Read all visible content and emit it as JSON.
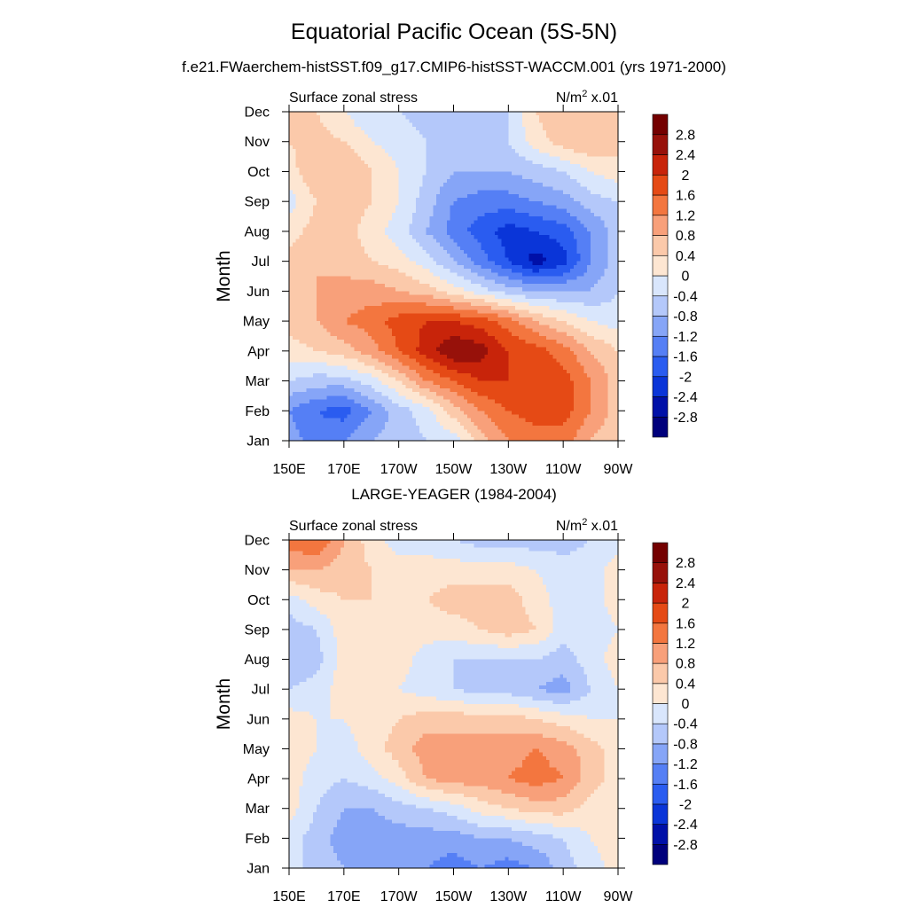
{
  "page": {
    "title": "Equatorial Pacific Ocean (5S-5N)",
    "subtitle": "f.e21.FWaerchem-histSST.f09_g17.CMIP6-histSST-WACCM.001 (yrs 1971-2000)"
  },
  "chart_data": [
    {
      "type": "heatmap",
      "title": "",
      "left_label": "Surface zonal stress",
      "units_label": "N/m",
      "units_exp": "2",
      "units_suffix": " x.01",
      "ylabel": "Month",
      "xlabel": "",
      "x_ticks": [
        "150E",
        "170E",
        "170W",
        "150W",
        "130W",
        "110W",
        "90W"
      ],
      "x_lon": [
        150,
        170,
        190,
        210,
        230,
        250,
        270
      ],
      "y_ticks": [
        "Jan",
        "Feb",
        "Mar",
        "Apr",
        "May",
        "Jun",
        "Jul",
        "Aug",
        "Sep",
        "Oct",
        "Nov",
        "Dec"
      ],
      "xlim": [
        150,
        270
      ],
      "ylim": [
        1,
        12
      ],
      "x_unit": "degrees_east",
      "x": [
        150,
        160,
        170,
        180,
        190,
        200,
        210,
        220,
        230,
        240,
        250,
        260,
        270
      ],
      "y": [
        1,
        2,
        3,
        4,
        5,
        6,
        7,
        8,
        9,
        10,
        11,
        12
      ],
      "values": [
        [
          -1.0,
          -1.4,
          -1.2,
          -0.8,
          -0.6,
          -0.4,
          -0.2,
          0.6,
          1.2,
          1.4,
          1.4,
          0.8,
          0.4
        ],
        [
          -1.2,
          -1.6,
          -1.8,
          -1.2,
          -0.6,
          -0.2,
          0.6,
          1.2,
          1.6,
          1.8,
          1.8,
          1.2,
          0.6
        ],
        [
          -0.4,
          -0.6,
          -0.6,
          -0.2,
          0.4,
          1.2,
          1.6,
          2.0,
          2.0,
          2.0,
          1.8,
          1.2,
          0.6
        ],
        [
          0.2,
          0.4,
          0.6,
          1.0,
          1.6,
          2.2,
          2.8,
          2.6,
          2.0,
          1.8,
          1.4,
          0.8,
          0.4
        ],
        [
          0.6,
          0.8,
          1.2,
          1.4,
          1.8,
          2.0,
          2.0,
          1.8,
          1.4,
          0.8,
          0.4,
          0.0,
          -0.2
        ],
        [
          0.6,
          0.8,
          1.0,
          1.0,
          0.8,
          0.6,
          0.2,
          -0.2,
          -0.6,
          -0.8,
          -0.8,
          -0.8,
          -0.4
        ],
        [
          0.6,
          0.8,
          0.6,
          0.4,
          0.2,
          -0.2,
          -0.8,
          -1.4,
          -2.0,
          -2.6,
          -2.2,
          -1.2,
          -0.6
        ],
        [
          0.2,
          0.6,
          0.6,
          0.2,
          -0.2,
          -0.8,
          -1.4,
          -1.8,
          -2.2,
          -2.0,
          -1.8,
          -1.2,
          -0.6
        ],
        [
          -0.2,
          0.4,
          0.6,
          0.4,
          0.0,
          -0.6,
          -1.2,
          -1.4,
          -1.4,
          -1.2,
          -1.0,
          -0.6,
          -0.4
        ],
        [
          0.2,
          0.8,
          0.8,
          0.4,
          0.0,
          -0.4,
          -0.8,
          -0.8,
          -0.8,
          -0.6,
          -0.4,
          0.0,
          0.2
        ],
        [
          0.4,
          0.6,
          0.4,
          0.0,
          -0.2,
          -0.4,
          -0.4,
          -0.6,
          -0.4,
          0.2,
          0.6,
          0.8,
          0.6
        ],
        [
          0.4,
          0.4,
          0.0,
          -0.4,
          -0.4,
          -0.6,
          -0.6,
          -0.4,
          -0.4,
          0.4,
          0.8,
          0.8,
          0.6
        ]
      ],
      "levels": [
        -2.8,
        -2.4,
        -2.0,
        -1.6,
        -1.2,
        -0.8,
        -0.4,
        0.0,
        0.4,
        0.8,
        1.2,
        1.6,
        2.0,
        2.4,
        2.8
      ],
      "colorbar_labels": [
        "2.8",
        "2.4",
        "2",
        "1.6",
        "1.2",
        "0.8",
        "0.4",
        "0",
        "-0.4",
        "-0.8",
        "-1.2",
        "-1.6",
        "-2",
        "-2.4",
        "-2.8"
      ]
    },
    {
      "type": "heatmap",
      "title": "LARGE-YEAGER (1984-2004)",
      "left_label": "Surface zonal stress",
      "units_label": "N/m",
      "units_exp": "2",
      "units_suffix": " x.01",
      "ylabel": "Month",
      "xlabel": "",
      "x_ticks": [
        "150E",
        "170E",
        "170W",
        "150W",
        "130W",
        "110W",
        "90W"
      ],
      "x_lon": [
        150,
        170,
        190,
        210,
        230,
        250,
        270
      ],
      "y_ticks": [
        "Jan",
        "Feb",
        "Mar",
        "Apr",
        "May",
        "Jun",
        "Jul",
        "Aug",
        "Sep",
        "Oct",
        "Nov",
        "Dec"
      ],
      "xlim": [
        150,
        270
      ],
      "ylim": [
        1,
        12
      ],
      "x_unit": "degrees_east",
      "x": [
        150,
        160,
        170,
        180,
        190,
        200,
        210,
        220,
        230,
        240,
        250,
        260,
        270
      ],
      "y": [
        1,
        2,
        3,
        4,
        5,
        6,
        7,
        8,
        9,
        10,
        11,
        12
      ],
      "values": [
        [
          -0.2,
          -0.6,
          -0.8,
          -0.8,
          -0.8,
          -1.2,
          -1.4,
          -1.2,
          -1.4,
          -1.2,
          -0.6,
          -0.2,
          0.2
        ],
        [
          -0.2,
          -0.6,
          -1.0,
          -1.0,
          -1.0,
          -1.0,
          -1.0,
          -0.8,
          -0.8,
          -0.6,
          -0.4,
          0.0,
          0.2
        ],
        [
          0.2,
          -0.4,
          -0.8,
          -0.8,
          -0.6,
          -0.4,
          -0.2,
          0.2,
          0.4,
          0.6,
          0.6,
          0.2,
          0.0
        ],
        [
          0.2,
          -0.2,
          -0.4,
          -0.2,
          0.2,
          0.8,
          1.0,
          1.0,
          1.2,
          1.4,
          1.2,
          0.6,
          0.2
        ],
        [
          0.2,
          0.0,
          -0.2,
          0.2,
          0.6,
          1.0,
          1.0,
          1.0,
          1.0,
          1.2,
          1.0,
          0.6,
          0.2
        ],
        [
          0.2,
          0.0,
          0.0,
          0.2,
          0.4,
          0.6,
          0.6,
          0.6,
          0.6,
          0.4,
          0.2,
          0.0,
          0.0
        ],
        [
          -0.4,
          -0.2,
          0.2,
          0.2,
          0.0,
          -0.2,
          -0.4,
          -0.6,
          -0.6,
          -0.8,
          -1.0,
          -0.4,
          0.0
        ],
        [
          -0.8,
          -0.6,
          0.2,
          0.2,
          0.2,
          -0.2,
          -0.4,
          -0.4,
          -0.4,
          -0.4,
          -0.6,
          -0.2,
          0.2
        ],
        [
          -0.6,
          -0.4,
          0.2,
          0.2,
          0.2,
          0.2,
          0.2,
          0.4,
          0.6,
          0.4,
          -0.2,
          -0.2,
          0.0
        ],
        [
          -0.2,
          0.2,
          0.4,
          0.4,
          0.2,
          0.4,
          0.6,
          0.6,
          0.6,
          0.2,
          -0.2,
          -0.2,
          0.2
        ],
        [
          0.8,
          0.8,
          0.6,
          0.4,
          0.2,
          0.2,
          0.2,
          0.2,
          0.2,
          0.0,
          -0.2,
          -0.2,
          0.2
        ],
        [
          1.4,
          1.6,
          0.8,
          0.2,
          -0.2,
          -0.2,
          -0.4,
          -0.6,
          -0.6,
          -0.6,
          -0.6,
          -0.4,
          -0.2
        ]
      ],
      "levels": [
        -2.8,
        -2.4,
        -2.0,
        -1.6,
        -1.2,
        -0.8,
        -0.4,
        0.0,
        0.4,
        0.8,
        1.2,
        1.6,
        2.0,
        2.4,
        2.8
      ],
      "colorbar_labels": [
        "2.8",
        "2.4",
        "2",
        "1.6",
        "1.2",
        "0.8",
        "0.4",
        "0",
        "-0.4",
        "-0.8",
        "-1.2",
        "-1.6",
        "-2",
        "-2.4",
        "-2.8"
      ]
    }
  ],
  "colors": {
    "palette": [
      "#00007c",
      "#0010a8",
      "#0a35d8",
      "#2a5cf0",
      "#557ff5",
      "#86a5f7",
      "#b4c8fa",
      "#d9e6fc",
      "#fde6d2",
      "#fbc9aa",
      "#f8a07a",
      "#f3763f",
      "#e54a15",
      "#c8240a",
      "#97110a",
      "#740000"
    ]
  }
}
